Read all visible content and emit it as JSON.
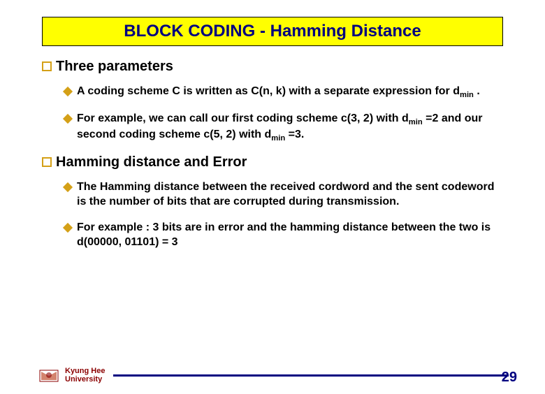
{
  "title": "BLOCK CODING - Hamming Distance",
  "section1": {
    "heading": "Three parameters",
    "items": [
      "A coding scheme C is written as C(n, k) with a separate expression for d<sub>min</sub> .",
      "For example, we can call our first coding scheme c(3, 2) with d<sub>min</sub> =2 and our second coding scheme c(5, 2) with d<sub>min</sub> =3."
    ]
  },
  "section2": {
    "heading": "Hamming distance and Error",
    "items": [
      "The Hamming distance between the received cordword and the sent codeword is the number of bits that are corrupted during transmission.",
      "For example : 3 bits are in error and the hamming distance between the two is d(00000, 01101) = 3"
    ]
  },
  "footer": {
    "university_line1": "Kyung Hee",
    "university_line2": "University",
    "page": "29"
  },
  "colors": {
    "title_bg": "#ffff00",
    "title_fg": "#000080",
    "bullet_accent": "#d4a017",
    "footer_line": "#000080",
    "university_text": "#8b0000"
  }
}
